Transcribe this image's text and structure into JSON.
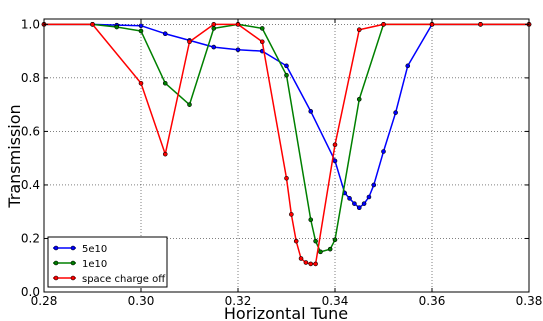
{
  "chart_data": {
    "type": "line",
    "xlabel": "Horizontal Tune",
    "ylabel": "Transmission",
    "xlim": [
      0.28,
      0.38
    ],
    "ylim": [
      0.0,
      1.02
    ],
    "xticks": [
      "0.28",
      "0.30",
      "0.32",
      "0.34",
      "0.36",
      "0.38"
    ],
    "yticks": [
      "0.0",
      "0.2",
      "0.4",
      "0.6",
      "0.8",
      "1.0"
    ],
    "grid": true,
    "legend_position": "lower-left",
    "series": [
      {
        "name": "5e10",
        "color": "#0000ff",
        "x": [
          0.28,
          0.29,
          0.295,
          0.3,
          0.305,
          0.31,
          0.315,
          0.32,
          0.325,
          0.33,
          0.335,
          0.34,
          0.342,
          0.343,
          0.344,
          0.345,
          0.346,
          0.347,
          0.348,
          0.35,
          0.3525,
          0.355,
          0.36,
          0.37,
          0.38
        ],
        "y": [
          1.0,
          1.0,
          0.997,
          0.995,
          0.965,
          0.94,
          0.915,
          0.905,
          0.9,
          0.845,
          0.675,
          0.49,
          0.37,
          0.35,
          0.33,
          0.315,
          0.33,
          0.355,
          0.4,
          0.525,
          0.67,
          0.845,
          1.0,
          1.0,
          1.0
        ]
      },
      {
        "name": "1e10",
        "color": "#008000",
        "x": [
          0.28,
          0.29,
          0.295,
          0.3,
          0.305,
          0.31,
          0.315,
          0.32,
          0.325,
          0.33,
          0.335,
          0.336,
          0.337,
          0.339,
          0.34,
          0.345,
          0.35,
          0.36,
          0.37,
          0.38
        ],
        "y": [
          1.0,
          1.0,
          0.99,
          0.975,
          0.78,
          0.7,
          0.985,
          1.0,
          0.985,
          0.81,
          0.27,
          0.19,
          0.15,
          0.16,
          0.195,
          0.72,
          1.0,
          1.0,
          1.0,
          1.0
        ]
      },
      {
        "name": "space charge off",
        "color": "#ff0000",
        "x": [
          0.28,
          0.29,
          0.3,
          0.305,
          0.31,
          0.315,
          0.32,
          0.325,
          0.33,
          0.331,
          0.332,
          0.333,
          0.334,
          0.335,
          0.336,
          0.34,
          0.345,
          0.35,
          0.36,
          0.37,
          0.38
        ],
        "y": [
          1.0,
          1.0,
          0.78,
          0.515,
          0.935,
          1.0,
          1.0,
          0.935,
          0.425,
          0.29,
          0.19,
          0.125,
          0.11,
          0.105,
          0.105,
          0.55,
          0.98,
          1.0,
          1.0,
          1.0,
          1.0
        ]
      }
    ]
  }
}
